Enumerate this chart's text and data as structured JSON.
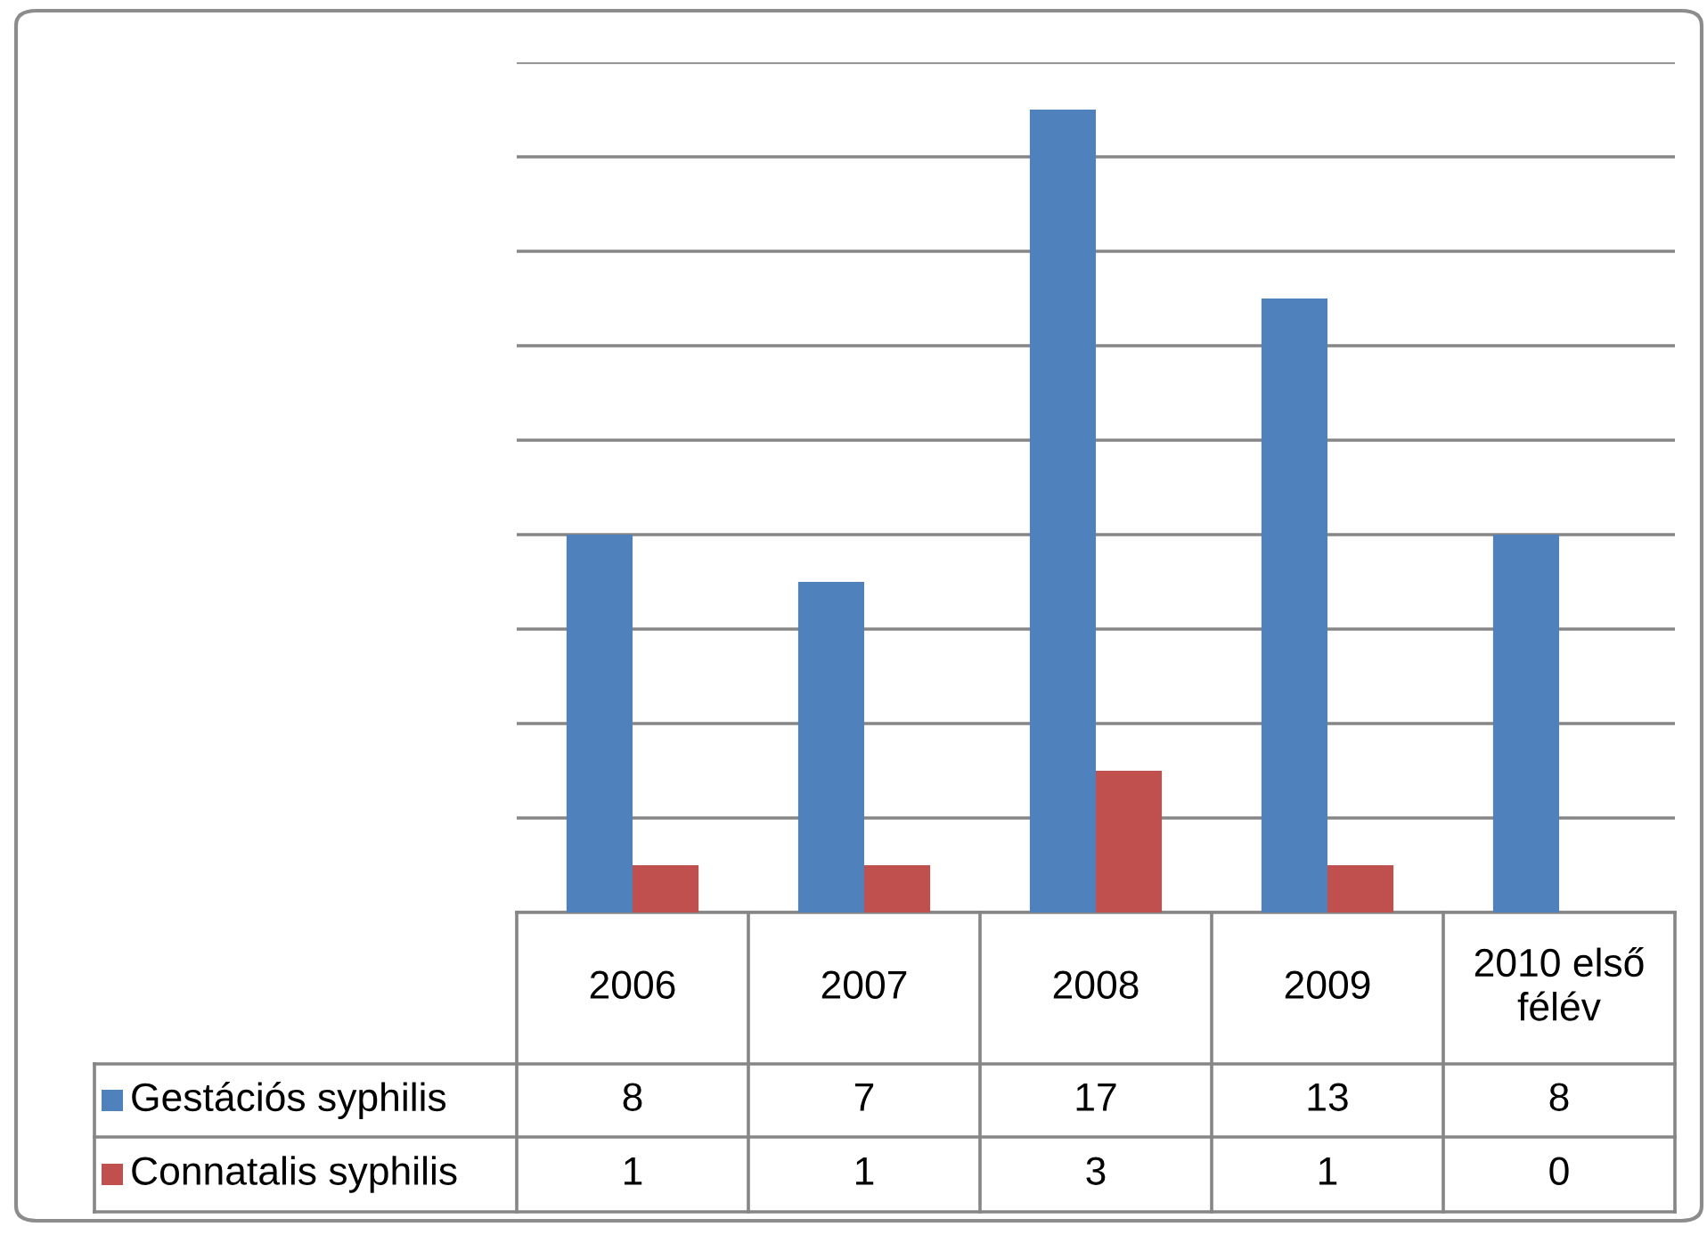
{
  "chart_data": {
    "type": "bar",
    "categories": [
      "2006",
      "2007",
      "2008",
      "2009",
      "2010 első félév"
    ],
    "series": [
      {
        "name": "Gestációs syphilis",
        "color": "#4f81bd",
        "values": [
          8,
          7,
          17,
          13,
          8
        ]
      },
      {
        "name": "Connatalis syphilis",
        "color": "#c0504d",
        "values": [
          1,
          1,
          3,
          1,
          0
        ]
      }
    ],
    "ylim": [
      0,
      18
    ],
    "yticks": [
      {
        "value": 0,
        "label": null
      },
      {
        "value": 2,
        "label": null
      },
      {
        "value": 4,
        "label": null
      },
      {
        "value": 6,
        "label": null
      },
      {
        "value": 8,
        "label": null
      },
      {
        "value": 10,
        "label": null
      },
      {
        "value": 12,
        "label": null
      },
      {
        "value": 14,
        "label": null
      },
      {
        "value": 16,
        "label": null
      },
      {
        "value": 18,
        "label": null
      }
    ],
    "tick_labels": "x",
    "grid": "y",
    "legend": "bottom",
    "data_labels": true
  }
}
